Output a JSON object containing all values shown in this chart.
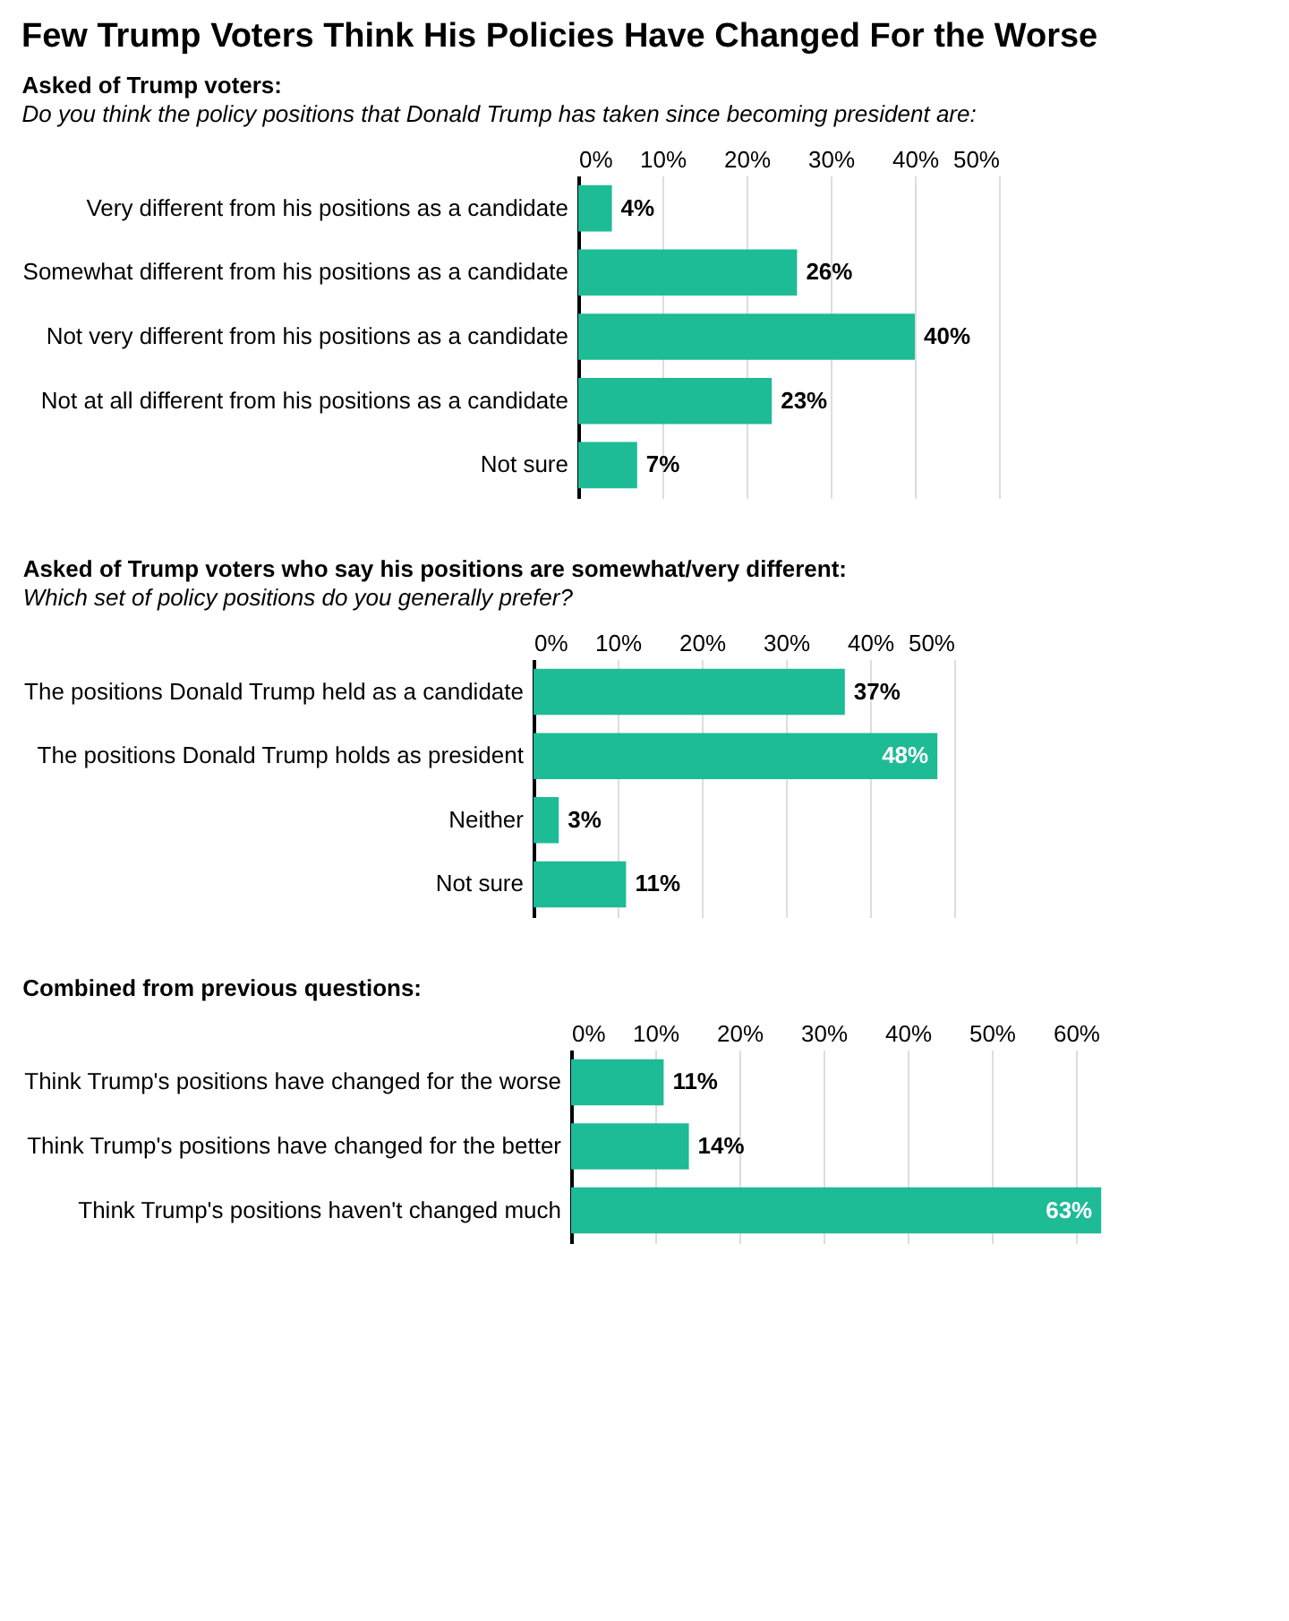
{
  "chart_data": [
    {
      "type": "bar",
      "orientation": "horizontal",
      "title": "Few Trump Voters Think His Policies Have Changed For the Worse",
      "subtitle": "Asked of Trump voters:",
      "annotations": [
        "Do you think the policy positions that Donald Trump has taken since becoming president are:"
      ],
      "categories": [
        "Very different from his positions as a candidate",
        "Somewhat different from his positions as a candidate",
        "Not very different from his positions as a candidate",
        "Not at all different from his positions as a candidate",
        "Not sure"
      ],
      "values": [
        4,
        26,
        40,
        23,
        7
      ],
      "value_labels": [
        "4%",
        "26%",
        "40%",
        "23%",
        "7%"
      ],
      "color": "#1dbb96",
      "xlim": [
        0,
        50
      ],
      "xticks": [
        {
          "value": 0,
          "label": "0%"
        },
        {
          "value": 10,
          "label": "10%"
        },
        {
          "value": 20,
          "label": "20%"
        },
        {
          "value": 30,
          "label": "30%"
        },
        {
          "value": 40,
          "label": "40%"
        },
        {
          "value": 50,
          "label": "50%"
        }
      ],
      "grid": "x"
    },
    {
      "type": "bar",
      "orientation": "horizontal",
      "title": "Asked of Trump voters who say his positions are somewhat/very different:",
      "subtitle": "Which set of policy positions do you generally prefer?",
      "categories": [
        "The positions Donald Trump held as a candidate",
        "The positions Donald Trump holds as president",
        "Neither",
        "Not sure"
      ],
      "values": [
        37,
        48,
        3,
        11
      ],
      "value_labels": [
        "37%",
        "48%",
        "3%",
        "11%"
      ],
      "color": "#1dbb96",
      "xlim": [
        0,
        50
      ],
      "xticks": [
        {
          "value": 0,
          "label": "0%"
        },
        {
          "value": 10,
          "label": "10%"
        },
        {
          "value": 20,
          "label": "20%"
        },
        {
          "value": 30,
          "label": "30%"
        },
        {
          "value": 40,
          "label": "40%"
        },
        {
          "value": 50,
          "label": "50%"
        }
      ],
      "grid": "x"
    },
    {
      "type": "bar",
      "orientation": "horizontal",
      "title": "Combined from previous questions:",
      "categories": [
        "Think Trump's positions have changed for the worse",
        "Think Trump's positions have changed for the better",
        "Think Trump's positions haven't changed much"
      ],
      "values": [
        11,
        14,
        63
      ],
      "value_labels": [
        "11%",
        "14%",
        "63%"
      ],
      "color": "#1dbb96",
      "xlim": [
        0,
        63
      ],
      "xticks": [
        {
          "value": 0,
          "label": "0%"
        },
        {
          "value": 10,
          "label": "10%"
        },
        {
          "value": 20,
          "label": "20%"
        },
        {
          "value": 30,
          "label": "30%"
        },
        {
          "value": 40,
          "label": "40%"
        },
        {
          "value": 50,
          "label": "50%"
        },
        {
          "value": 60,
          "label": "60%"
        }
      ],
      "grid": "x"
    }
  ]
}
